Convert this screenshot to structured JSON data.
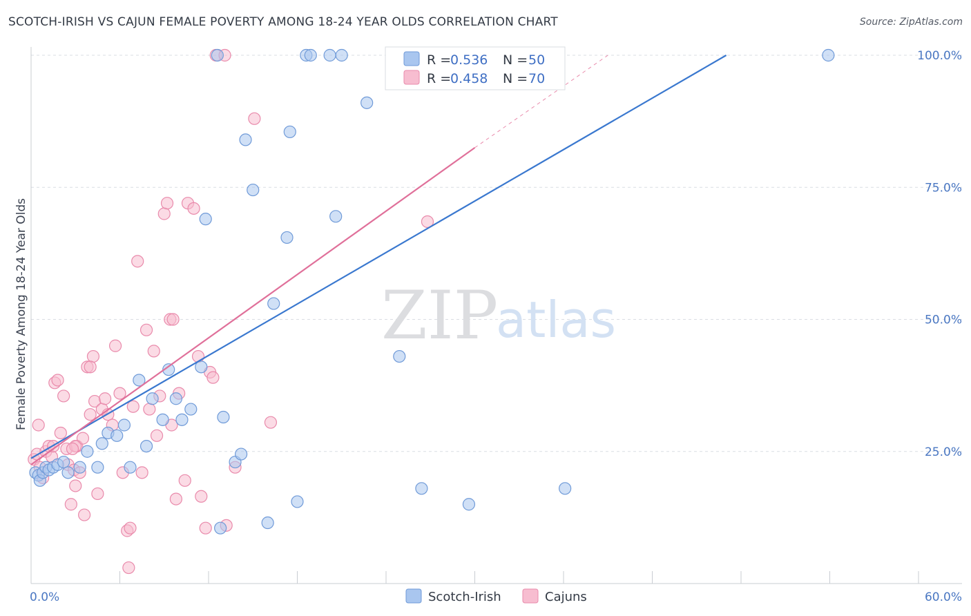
{
  "title": "SCOTCH-IRISH VS CAJUN FEMALE POVERTY AMONG 18-24 YEAR OLDS CORRELATION CHART",
  "source": "Source: ZipAtlas.com",
  "watermark": {
    "zip": "ZIP",
    "atlas": "atlas"
  },
  "colors": {
    "blue_fill": "#a9c6ef",
    "blue_stroke": "#6f9ad8",
    "blue_line": "#3a78cf",
    "pink_fill": "#f7bdd0",
    "pink_stroke": "#e98aab",
    "pink_line": "#e0709a",
    "grid": "#d9dde3",
    "tick_text": "#4a77c2"
  },
  "legend": {
    "items": [
      {
        "r_label": "R =",
        "r_value": "0.536",
        "n_label": "N =",
        "n_value": "50"
      },
      {
        "r_label": "R =",
        "r_value": "0.458",
        "n_label": "N =",
        "n_value": "70"
      }
    ]
  },
  "bottom_legend": [
    "Scotch-Irish",
    "Cajuns"
  ],
  "chart_data": {
    "type": "scatter",
    "title": "SCOTCH-IRISH VS CAJUN FEMALE POVERTY AMONG 18-24 YEAR OLDS CORRELATION CHART",
    "xlabel": "",
    "ylabel": "Female Poverty Among 18-24 Year Olds",
    "xlim": [
      0,
      60
    ],
    "ylim": [
      0,
      100
    ],
    "x_tick_labels": [
      {
        "value": 0,
        "label": "0.0%"
      },
      {
        "value": 60,
        "label": "60.0%"
      }
    ],
    "y_tick_labels": [
      {
        "value": 25,
        "label": "25.0%"
      },
      {
        "value": 50,
        "label": "50.0%"
      },
      {
        "value": 75,
        "label": "75.0%"
      },
      {
        "value": 100,
        "label": "100.0%"
      }
    ],
    "grid": true,
    "legend_position": "top-center",
    "series": [
      {
        "name": "Scotch-Irish",
        "r": 0.536,
        "n": 50,
        "trend": {
          "x": [
            0,
            47.0
          ],
          "y": [
            23.7,
            100
          ]
        },
        "points": [
          [
            0.3,
            21
          ],
          [
            0.5,
            20.5
          ],
          [
            0.6,
            19.5
          ],
          [
            0.8,
            21
          ],
          [
            1.0,
            22
          ],
          [
            1.2,
            21.5
          ],
          [
            1.5,
            22
          ],
          [
            1.8,
            22.5
          ],
          [
            2.2,
            23
          ],
          [
            2.5,
            21
          ],
          [
            3.3,
            22
          ],
          [
            3.8,
            25
          ],
          [
            4.5,
            22
          ],
          [
            4.8,
            26.5
          ],
          [
            5.2,
            28.5
          ],
          [
            5.8,
            28
          ],
          [
            6.3,
            30
          ],
          [
            6.7,
            22
          ],
          [
            7.3,
            38.5
          ],
          [
            7.8,
            26
          ],
          [
            8.2,
            35
          ],
          [
            8.9,
            31
          ],
          [
            9.3,
            40.5
          ],
          [
            9.8,
            35
          ],
          [
            10.2,
            31
          ],
          [
            10.8,
            33
          ],
          [
            11.5,
            41
          ],
          [
            11.8,
            69
          ],
          [
            12.8,
            10.5
          ],
          [
            13.0,
            31.5
          ],
          [
            13.8,
            23
          ],
          [
            14.2,
            24.5
          ],
          [
            14.5,
            84
          ],
          [
            15.0,
            74.5
          ],
          [
            16.0,
            11.5
          ],
          [
            16.4,
            53
          ],
          [
            17.3,
            65.5
          ],
          [
            17.5,
            85.5
          ],
          [
            18.0,
            15.5
          ],
          [
            18.6,
            100
          ],
          [
            18.9,
            100
          ],
          [
            20.2,
            100
          ],
          [
            21.0,
            100
          ],
          [
            20.6,
            69.5
          ],
          [
            22.7,
            91
          ],
          [
            24.9,
            43
          ],
          [
            26.4,
            18
          ],
          [
            26.9,
            100
          ],
          [
            29.6,
            15
          ],
          [
            36.1,
            18
          ]
        ],
        "extra_points": [
          [
            53.9,
            100
          ],
          [
            12.6,
            100
          ]
        ]
      },
      {
        "name": "Cajuns",
        "r": 0.458,
        "n": 70,
        "trend": {
          "x": [
            0,
            30.0
          ],
          "y": [
            22.5,
            82.5
          ]
        },
        "trend_extended": {
          "x": [
            30.0,
            39.0
          ],
          "y": [
            82.5,
            100
          ]
        },
        "points": [
          [
            0.2,
            23.5
          ],
          [
            0.4,
            24.5
          ],
          [
            0.5,
            30
          ],
          [
            0.6,
            22
          ],
          [
            0.8,
            20
          ],
          [
            1.0,
            25
          ],
          [
            1.2,
            26
          ],
          [
            1.4,
            24
          ],
          [
            1.6,
            38
          ],
          [
            1.8,
            38.5
          ],
          [
            2.0,
            28.5
          ],
          [
            2.2,
            35.5
          ],
          [
            2.4,
            25.5
          ],
          [
            2.5,
            22.5
          ],
          [
            2.7,
            15
          ],
          [
            2.9,
            21.5
          ],
          [
            3.0,
            18.5
          ],
          [
            3.1,
            26
          ],
          [
            3.3,
            21
          ],
          [
            3.5,
            27.5
          ],
          [
            3.6,
            13
          ],
          [
            3.8,
            41
          ],
          [
            4.0,
            32
          ],
          [
            4.2,
            43
          ],
          [
            4.3,
            34.5
          ],
          [
            4.5,
            17
          ],
          [
            4.8,
            33
          ],
          [
            5.0,
            35
          ],
          [
            5.2,
            32
          ],
          [
            5.5,
            30
          ],
          [
            5.7,
            45
          ],
          [
            6.0,
            36
          ],
          [
            6.2,
            21
          ],
          [
            6.5,
            10
          ],
          [
            6.7,
            10.5
          ],
          [
            6.9,
            33.5
          ],
          [
            7.2,
            61
          ],
          [
            7.5,
            21
          ],
          [
            7.8,
            48
          ],
          [
            8.0,
            33
          ],
          [
            8.3,
            44
          ],
          [
            8.5,
            28
          ],
          [
            8.7,
            35.5
          ],
          [
            9.0,
            70
          ],
          [
            9.2,
            72
          ],
          [
            9.4,
            50
          ],
          [
            9.6,
            50
          ],
          [
            9.8,
            16
          ],
          [
            10.0,
            36
          ],
          [
            10.4,
            19.5
          ],
          [
            10.6,
            72
          ],
          [
            11.0,
            71
          ],
          [
            11.3,
            43
          ],
          [
            11.5,
            16.5
          ],
          [
            11.8,
            10.5
          ],
          [
            12.1,
            40
          ],
          [
            12.3,
            39
          ],
          [
            12.5,
            100
          ],
          [
            13.1,
            100
          ],
          [
            13.2,
            11
          ],
          [
            13.8,
            22
          ],
          [
            15.1,
            88
          ],
          [
            16.2,
            30.5
          ],
          [
            26.8,
            68.5
          ],
          [
            6.6,
            3
          ],
          [
            4.0,
            41
          ],
          [
            9.5,
            30
          ],
          [
            3.0,
            26
          ],
          [
            1.5,
            26
          ],
          [
            2.8,
            25.5
          ]
        ]
      }
    ]
  }
}
